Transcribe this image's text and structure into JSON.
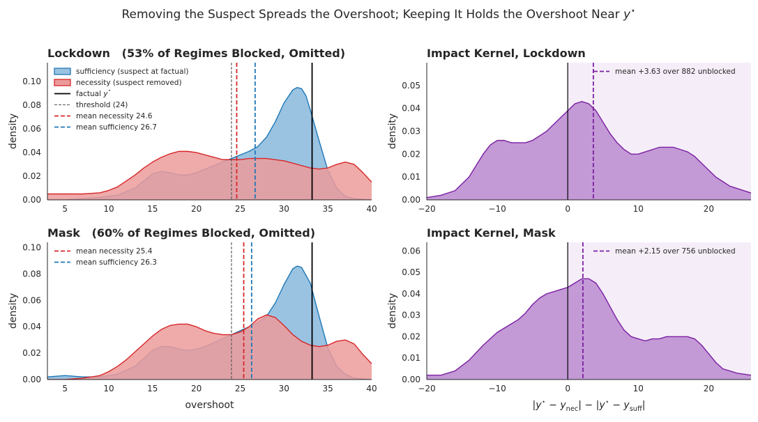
{
  "figure": {
    "suptitle": "Removing the Suspect Spreads the Overshoot; Keeping It Holds the Overshoot Near y⋆"
  },
  "colors": {
    "sufficiency": "#1f77b4",
    "sufficiency_fill": "#9ac3e2",
    "necessity": "#d62728",
    "necessity_fill": "#ec9b9b",
    "overlap_fill": "#a86c78",
    "kernel": "#7b1fa2",
    "kernel_fill": "#c094d4",
    "kernel_bg": "#f5eef8"
  },
  "chart_data": [
    {
      "id": "lockdown-dist",
      "type": "area",
      "title": "Lockdown   (53% of Regimes Blocked, Omitted)",
      "xlabel": "",
      "ylabel": "density",
      "xlim": [
        3,
        40
      ],
      "ylim": [
        0,
        0.116
      ],
      "xticks": [
        5,
        10,
        15,
        20,
        25,
        30,
        35,
        40
      ],
      "yticks": [
        0.0,
        0.02,
        0.04,
        0.06,
        0.08,
        0.1
      ],
      "ytick_labels": [
        "0.00",
        "0.02",
        "0.04",
        "0.06",
        "0.08",
        "0.10"
      ],
      "legend_position": "upper-left",
      "series": [
        {
          "name": "sufficiency (suspect at factual)",
          "x": [
            3,
            5,
            7,
            9,
            11,
            13,
            14,
            15,
            16,
            17,
            18,
            19,
            20,
            21,
            22,
            23,
            24,
            25,
            26,
            27,
            28,
            29,
            30,
            31,
            31.5,
            32,
            32.5,
            33,
            34,
            35,
            36,
            37,
            38,
            40
          ],
          "y": [
            0.0,
            0.0,
            0.001,
            0.002,
            0.004,
            0.01,
            0.016,
            0.022,
            0.024,
            0.023,
            0.021,
            0.021,
            0.023,
            0.026,
            0.029,
            0.032,
            0.035,
            0.038,
            0.041,
            0.045,
            0.053,
            0.066,
            0.082,
            0.093,
            0.095,
            0.094,
            0.088,
            0.076,
            0.05,
            0.025,
            0.01,
            0.003,
            0.001,
            0.0
          ]
        },
        {
          "name": "necessity (suspect removed)",
          "x": [
            3,
            5,
            7,
            9,
            10,
            11,
            12,
            13,
            14,
            15,
            16,
            17,
            18,
            19,
            20,
            21,
            22,
            23,
            24,
            25,
            26,
            27,
            28,
            29,
            30,
            31,
            32,
            33,
            34,
            35,
            36,
            37,
            38,
            39,
            40
          ],
          "y": [
            0.005,
            0.005,
            0.005,
            0.006,
            0.008,
            0.011,
            0.016,
            0.021,
            0.027,
            0.032,
            0.036,
            0.039,
            0.041,
            0.041,
            0.04,
            0.038,
            0.036,
            0.034,
            0.034,
            0.034,
            0.035,
            0.035,
            0.035,
            0.034,
            0.033,
            0.031,
            0.029,
            0.027,
            0.026,
            0.027,
            0.03,
            0.032,
            0.03,
            0.023,
            0.015
          ]
        }
      ],
      "vlines": [
        {
          "label": "factual y⋆",
          "x": 33.2,
          "style": "solid",
          "color": "#000000"
        },
        {
          "label": "threshold (24)",
          "x": 24,
          "style": "dashed-thin",
          "color": "#555555"
        },
        {
          "label": "mean necessity 24.6",
          "x": 24.6,
          "style": "dashed",
          "color": "#d62728"
        },
        {
          "label": "mean sufficiency 26.7",
          "x": 26.7,
          "style": "dashed",
          "color": "#1f77b4"
        }
      ]
    },
    {
      "id": "lockdown-kernel",
      "type": "area",
      "title": "Impact Kernel, Lockdown",
      "xlabel": "",
      "ylabel": "density",
      "xlim": [
        -20,
        26
      ],
      "ylim": [
        0,
        0.06
      ],
      "xticks": [
        -20,
        -10,
        0,
        10,
        20
      ],
      "xtick_labels": [
        "−20",
        "−10",
        "0",
        "10",
        "20"
      ],
      "yticks": [
        0.0,
        0.01,
        0.02,
        0.03,
        0.04,
        0.05
      ],
      "ytick_labels": [
        "0.00",
        "0.01",
        "0.02",
        "0.03",
        "0.04",
        "0.05"
      ],
      "shade_from": 0,
      "legend_position": "upper-right",
      "series": [
        {
          "name": "",
          "x": [
            -20,
            -18,
            -16,
            -14,
            -13,
            -12,
            -11,
            -10,
            -9,
            -8,
            -7,
            -6,
            -5,
            -4,
            -3,
            -2,
            -1,
            0,
            1,
            2,
            3,
            4,
            5,
            6,
            7,
            8,
            9,
            10,
            11,
            12,
            13,
            14,
            15,
            16,
            17,
            18,
            19,
            20,
            21,
            22,
            23,
            24,
            26
          ],
          "y": [
            0.001,
            0.002,
            0.004,
            0.01,
            0.015,
            0.02,
            0.024,
            0.026,
            0.026,
            0.025,
            0.025,
            0.025,
            0.026,
            0.028,
            0.03,
            0.033,
            0.036,
            0.039,
            0.042,
            0.043,
            0.042,
            0.039,
            0.034,
            0.029,
            0.025,
            0.022,
            0.02,
            0.02,
            0.021,
            0.022,
            0.023,
            0.023,
            0.023,
            0.022,
            0.021,
            0.019,
            0.016,
            0.013,
            0.01,
            0.008,
            0.006,
            0.005,
            0.003
          ]
        }
      ],
      "vlines": [
        {
          "label": "",
          "x": 0,
          "style": "solid",
          "color": "#000000"
        },
        {
          "label": "mean +3.63 over 882 unblocked",
          "x": 3.63,
          "style": "dashed",
          "color": "#7b1fa2"
        }
      ]
    },
    {
      "id": "mask-dist",
      "type": "area",
      "title": "Mask   (60% of Regimes Blocked, Omitted)",
      "xlabel": "overshoot",
      "ylabel": "density",
      "xlim": [
        3,
        40
      ],
      "ylim": [
        0,
        0.104
      ],
      "xticks": [
        5,
        10,
        15,
        20,
        25,
        30,
        35,
        40
      ],
      "yticks": [
        0.0,
        0.02,
        0.04,
        0.06,
        0.08,
        0.1
      ],
      "ytick_labels": [
        "0.00",
        "0.02",
        "0.04",
        "0.06",
        "0.08",
        "0.10"
      ],
      "legend_position": "upper-left",
      "series": [
        {
          "name": "sufficiency",
          "x": [
            3,
            5,
            7,
            9,
            11,
            13,
            14,
            15,
            16,
            17,
            18,
            19,
            20,
            21,
            22,
            23,
            24,
            25,
            26,
            27,
            28,
            29,
            30,
            31,
            31.5,
            32,
            33,
            34,
            35,
            36,
            37,
            38,
            40
          ],
          "y": [
            0.002,
            0.003,
            0.002,
            0.002,
            0.004,
            0.01,
            0.016,
            0.022,
            0.025,
            0.025,
            0.023,
            0.022,
            0.023,
            0.025,
            0.028,
            0.031,
            0.034,
            0.037,
            0.04,
            0.043,
            0.048,
            0.058,
            0.072,
            0.084,
            0.086,
            0.085,
            0.073,
            0.048,
            0.024,
            0.01,
            0.004,
            0.001,
            0.0
          ]
        },
        {
          "name": "necessity",
          "x": [
            3,
            5,
            7,
            9,
            10,
            11,
            12,
            13,
            14,
            15,
            16,
            17,
            18,
            19,
            20,
            21,
            22,
            23,
            24,
            25,
            26,
            27,
            28,
            29,
            30,
            31,
            32,
            33,
            34,
            35,
            36,
            37,
            38,
            39,
            40
          ],
          "y": [
            0.0,
            0.0,
            0.001,
            0.003,
            0.006,
            0.01,
            0.015,
            0.021,
            0.027,
            0.033,
            0.038,
            0.041,
            0.042,
            0.042,
            0.04,
            0.037,
            0.035,
            0.034,
            0.034,
            0.036,
            0.04,
            0.046,
            0.049,
            0.047,
            0.041,
            0.034,
            0.029,
            0.026,
            0.025,
            0.026,
            0.029,
            0.03,
            0.027,
            0.019,
            0.012
          ]
        }
      ],
      "vlines": [
        {
          "label": "",
          "x": 33.2,
          "style": "solid",
          "color": "#000000"
        },
        {
          "label": "",
          "x": 24,
          "style": "dashed-thin",
          "color": "#555555"
        },
        {
          "label": "mean necessity 25.4",
          "x": 25.4,
          "style": "dashed",
          "color": "#d62728"
        },
        {
          "label": "mean sufficiency 26.3",
          "x": 26.3,
          "style": "dashed",
          "color": "#1f77b4"
        }
      ]
    },
    {
      "id": "mask-kernel",
      "type": "area",
      "title": "Impact Kernel, Mask",
      "xlabel": "|y⋆ − y_nec| − |y⋆ − y_suff|",
      "ylabel": "density",
      "xlim": [
        -20,
        26
      ],
      "ylim": [
        0,
        0.064
      ],
      "xticks": [
        -20,
        -10,
        0,
        10,
        20
      ],
      "xtick_labels": [
        "−20",
        "−10",
        "0",
        "10",
        "20"
      ],
      "yticks": [
        0.0,
        0.01,
        0.02,
        0.03,
        0.04,
        0.05,
        0.06
      ],
      "ytick_labels": [
        "0.00",
        "0.01",
        "0.02",
        "0.03",
        "0.04",
        "0.05",
        "0.06"
      ],
      "shade_from": 0,
      "legend_position": "upper-right",
      "series": [
        {
          "name": "",
          "x": [
            -20,
            -18,
            -16,
            -14,
            -12,
            -10,
            -9,
            -8,
            -7,
            -6,
            -5,
            -4,
            -3,
            -2,
            -1,
            0,
            1,
            2,
            3,
            4,
            5,
            6,
            7,
            8,
            9,
            10,
            11,
            12,
            13,
            14,
            15,
            16,
            17,
            18,
            19,
            20,
            21,
            22,
            23,
            24,
            26
          ],
          "y": [
            0.002,
            0.002,
            0.004,
            0.009,
            0.016,
            0.022,
            0.024,
            0.026,
            0.028,
            0.031,
            0.035,
            0.038,
            0.04,
            0.041,
            0.042,
            0.043,
            0.045,
            0.047,
            0.047,
            0.045,
            0.04,
            0.034,
            0.028,
            0.023,
            0.02,
            0.019,
            0.018,
            0.019,
            0.019,
            0.02,
            0.02,
            0.02,
            0.02,
            0.019,
            0.016,
            0.012,
            0.008,
            0.005,
            0.004,
            0.003,
            0.002
          ]
        }
      ],
      "vlines": [
        {
          "label": "",
          "x": 0,
          "style": "solid",
          "color": "#000000"
        },
        {
          "label": "mean +2.15 over 756 unblocked",
          "x": 2.15,
          "style": "dashed",
          "color": "#7b1fa2"
        }
      ]
    }
  ]
}
